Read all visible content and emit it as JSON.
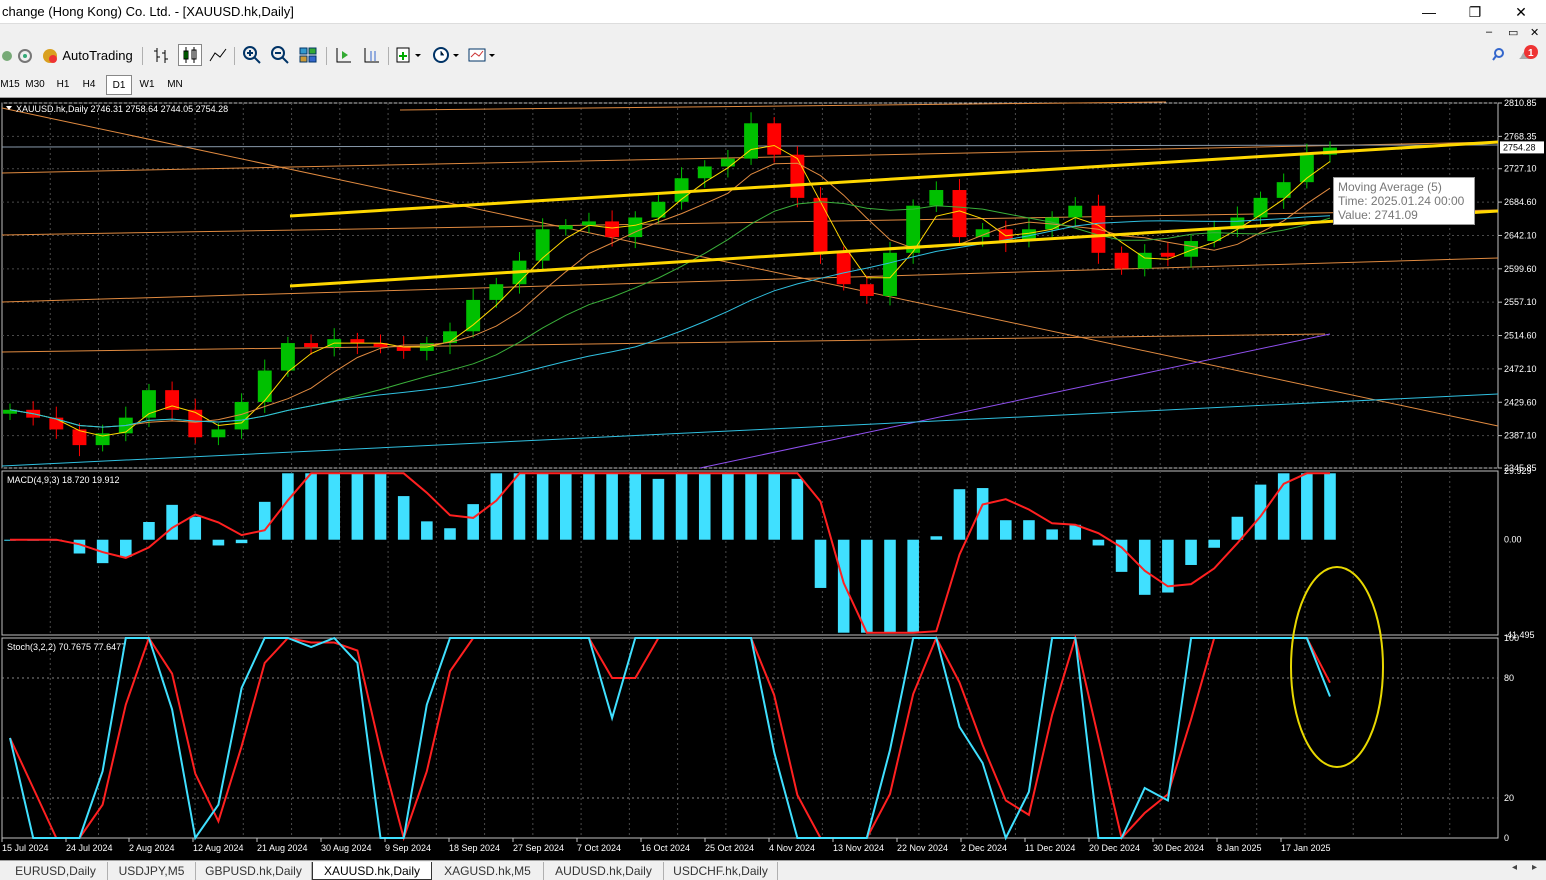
{
  "window": {
    "title": "change (Hong Kong) Co. Ltd. - [XAUUSD.hk,Daily]",
    "minimize": "—",
    "restore": "❐",
    "close": "✕",
    "inner_min": "–",
    "inner_restore": "▭",
    "inner_close": "✕"
  },
  "toolbar": {
    "autotrading_label": "AutoTrading",
    "timeframes": [
      "M15",
      "M30",
      "H1",
      "H4",
      "D1",
      "W1",
      "MN"
    ],
    "active_timeframe": "D1",
    "notification_count": "1"
  },
  "chart": {
    "header": "XAUUSD.hk,Daily  2746.31 2758.64 2744.05 2754.28",
    "current_price": "2754.28",
    "price_ticks": [
      "2810.85",
      "2768.35",
      "2727.10",
      "2684.60",
      "2642.10",
      "2599.60",
      "2557.10",
      "2514.60",
      "2472.10",
      "2429.60",
      "2387.10",
      "2345.85"
    ],
    "macd_header": "MACD(4,9,3) 18.720 19.912",
    "macd_ticks": [
      "29.929",
      "0.00",
      "-41.495"
    ],
    "stoch_header": "Stoch(3,2,2) 70.7675 77.6477",
    "stoch_ticks": [
      "100",
      "80",
      "20",
      "0"
    ],
    "date_ticks": [
      "15 Jul 2024",
      "24 Jul 2024",
      "2 Aug 2024",
      "12 Aug 2024",
      "21 Aug 2024",
      "30 Aug 2024",
      "9 Sep 2024",
      "18 Sep 2024",
      "27 Sep 2024",
      "7 Oct 2024",
      "16 Oct 2024",
      "25 Oct 2024",
      "4 Nov 2024",
      "13 Nov 2024",
      "22 Nov 2024",
      "2 Dec 2024",
      "11 Dec 2024",
      "20 Dec 2024",
      "30 Dec 2024",
      "8 Jan 2025",
      "17 Jan 2025"
    ],
    "tooltip": {
      "line1": "Moving Average (5)",
      "line2": "Time: 2025.01.24 00:00",
      "line3": "Value: 2741.09"
    },
    "colors": {
      "background": "#000000",
      "bull": "#00c000",
      "bear": "#ff0000",
      "trendline": "#ffd700",
      "macd_hist": "#40e0ff",
      "signal": "#ff2020",
      "stoch_main": "#40e0ff"
    }
  },
  "tabs": [
    "EURUSD,Daily",
    "USDJPY,M5",
    "GBPUSD.hk,Daily",
    "XAUUSD.hk,Daily",
    "XAGUSD.hk,M5",
    "AUDUSD.hk,Daily",
    "USDCHF.hk,Daily"
  ],
  "active_tab": "XAUUSD.hk,Daily",
  "chart_data": {
    "type": "candlestick",
    "title": "XAUUSD.hk,Daily",
    "ohlc_last": {
      "open": 2746.31,
      "high": 2758.64,
      "low": 2744.05,
      "close": 2754.28
    },
    "ylim": [
      2345.85,
      2810.85
    ],
    "x_labels": [
      "15 Jul 2024",
      "24 Jul 2024",
      "2 Aug 2024",
      "12 Aug 2024",
      "21 Aug 2024",
      "30 Aug 2024",
      "9 Sep 2024",
      "18 Sep 2024",
      "27 Sep 2024",
      "7 Oct 2024",
      "16 Oct 2024",
      "25 Oct 2024",
      "4 Nov 2024",
      "13 Nov 2024",
      "22 Nov 2024",
      "2 Dec 2024",
      "11 Dec 2024",
      "20 Dec 2024",
      "30 Dec 2024",
      "8 Jan 2025",
      "17 Jan 2025"
    ],
    "close_series": [
      2420,
      2410,
      2395,
      2375,
      2390,
      2410,
      2445,
      2420,
      2385,
      2395,
      2430,
      2470,
      2505,
      2500,
      2510,
      2505,
      2500,
      2495,
      2505,
      2520,
      2560,
      2580,
      2610,
      2650,
      2655,
      2660,
      2640,
      2665,
      2685,
      2715,
      2730,
      2740,
      2785,
      2745,
      2690,
      2620,
      2580,
      2565,
      2620,
      2680,
      2700,
      2640,
      2650,
      2635,
      2650,
      2665,
      2680,
      2620,
      2600,
      2620,
      2615,
      2635,
      2650,
      2665,
      2690,
      2710,
      2745,
      2754
    ],
    "macd": {
      "value": 18.72,
      "signal": 19.912,
      "ylim": [
        -41.495,
        29.929
      ]
    },
    "stochastic": {
      "main": 70.7675,
      "signal": 77.6477,
      "levels": [
        20,
        80
      ],
      "ylim": [
        0,
        100
      ]
    }
  }
}
